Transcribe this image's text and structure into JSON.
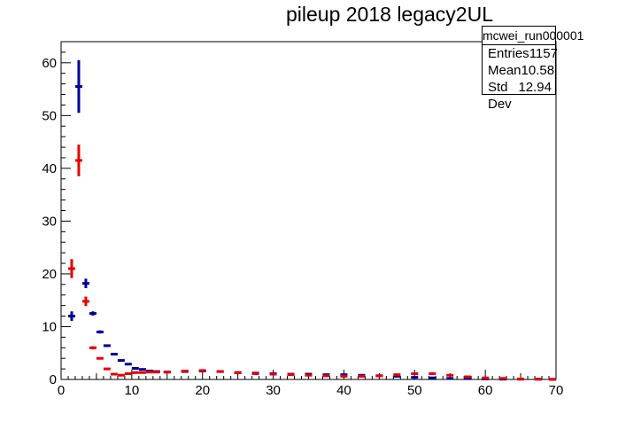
{
  "chart_data": {
    "type": "scatter",
    "title": "pileup 2018 legacy2UL",
    "xlabel": "",
    "ylabel": "",
    "xlim": [
      0,
      70
    ],
    "ylim": [
      0,
      64
    ],
    "x_ticks": [
      "0",
      "10",
      "20",
      "30",
      "40",
      "50",
      "60",
      "70"
    ],
    "y_ticks": [
      "0",
      "10",
      "20",
      "30",
      "40",
      "50",
      "60"
    ],
    "grid": false,
    "stats_box": {
      "name": "mcwei_run000001",
      "rows": [
        {
          "label": "Entries",
          "value": "1157"
        },
        {
          "label": "Mean",
          "value": "10.58"
        },
        {
          "label": "Std Dev",
          "value": "12.94"
        }
      ]
    },
    "series": [
      {
        "color": "#000099",
        "points": [
          {
            "x": 1.5,
            "y": 12.0,
            "err": 0.9
          },
          {
            "x": 2.5,
            "y": 55.5,
            "err": 5.0
          },
          {
            "x": 3.5,
            "y": 18.2,
            "err": 0.9
          },
          {
            "x": 4.5,
            "y": 12.5,
            "err": 0.4
          },
          {
            "x": 5.5,
            "y": 9.0,
            "err": 0.3
          },
          {
            "x": 6.5,
            "y": 6.4,
            "err": 0.2
          },
          {
            "x": 7.5,
            "y": 4.8,
            "err": 0.2
          },
          {
            "x": 8.5,
            "y": 3.6,
            "err": 0.15
          },
          {
            "x": 9.5,
            "y": 2.9,
            "err": 0.1
          },
          {
            "x": 10.5,
            "y": 2.1,
            "err": 0.1
          },
          {
            "x": 11.5,
            "y": 1.9,
            "err": 0.1
          },
          {
            "x": 12.5,
            "y": 1.6,
            "err": 0.1
          },
          {
            "x": 13.5,
            "y": 1.5,
            "err": 0.1
          },
          {
            "x": 15.0,
            "y": 1.4,
            "err": 0.1
          },
          {
            "x": 17.5,
            "y": 1.5,
            "err": 0.1
          },
          {
            "x": 20.0,
            "y": 1.6,
            "err": 0.1
          },
          {
            "x": 22.5,
            "y": 1.5,
            "err": 0.1
          },
          {
            "x": 25.0,
            "y": 1.3,
            "err": 0.1
          },
          {
            "x": 27.5,
            "y": 1.2,
            "err": 0.1
          },
          {
            "x": 30.0,
            "y": 1.1,
            "err": 0.1
          },
          {
            "x": 32.5,
            "y": 1.0,
            "err": 0.1
          },
          {
            "x": 35.0,
            "y": 1.0,
            "err": 0.1
          },
          {
            "x": 37.5,
            "y": 0.9,
            "err": 0.1
          },
          {
            "x": 40.0,
            "y": 0.9,
            "err": 0.1
          },
          {
            "x": 42.5,
            "y": 0.8,
            "err": 0.1
          },
          {
            "x": 45.0,
            "y": 0.7,
            "err": 0.1
          },
          {
            "x": 47.5,
            "y": 0.6,
            "err": 0.1
          },
          {
            "x": 50.0,
            "y": 0.4,
            "err": 0.1
          },
          {
            "x": 52.5,
            "y": 0.3,
            "err": 0.1
          },
          {
            "x": 55.0,
            "y": 0.2,
            "err": 0.1
          },
          {
            "x": 57.5,
            "y": 0.15,
            "err": 0.05
          },
          {
            "x": 60.0,
            "y": 0.1,
            "err": 0.05
          },
          {
            "x": 62.5,
            "y": 0.05,
            "err": 0.05
          },
          {
            "x": 65.0,
            "y": 0.05,
            "err": 0.05
          },
          {
            "x": 67.5,
            "y": 0.05,
            "err": 0.05
          },
          {
            "x": 69.5,
            "y": 0.02,
            "err": 0.02
          }
        ]
      },
      {
        "color": "#e60000",
        "points": [
          {
            "x": 1.5,
            "y": 21.0,
            "err": 1.8
          },
          {
            "x": 2.5,
            "y": 41.5,
            "err": 3.0
          },
          {
            "x": 3.5,
            "y": 14.8,
            "err": 0.9
          },
          {
            "x": 4.5,
            "y": 6.0,
            "err": 0.3
          },
          {
            "x": 5.5,
            "y": 4.0,
            "err": 0.2
          },
          {
            "x": 6.5,
            "y": 2.0,
            "err": 0.15
          },
          {
            "x": 7.5,
            "y": 1.0,
            "err": 0.1
          },
          {
            "x": 8.5,
            "y": 0.8,
            "err": 0.1
          },
          {
            "x": 9.5,
            "y": 1.1,
            "err": 0.1
          },
          {
            "x": 10.5,
            "y": 1.3,
            "err": 0.1
          },
          {
            "x": 11.5,
            "y": 1.3,
            "err": 0.1
          },
          {
            "x": 12.5,
            "y": 1.4,
            "err": 0.1
          },
          {
            "x": 13.5,
            "y": 1.4,
            "err": 0.1
          },
          {
            "x": 15.0,
            "y": 1.4,
            "err": 0.1
          },
          {
            "x": 17.5,
            "y": 1.6,
            "err": 0.1
          },
          {
            "x": 20.0,
            "y": 1.7,
            "err": 0.1
          },
          {
            "x": 22.5,
            "y": 1.5,
            "err": 0.1
          },
          {
            "x": 25.0,
            "y": 1.3,
            "err": 0.1
          },
          {
            "x": 27.5,
            "y": 1.1,
            "err": 0.1
          },
          {
            "x": 30.0,
            "y": 1.0,
            "err": 0.1
          },
          {
            "x": 32.5,
            "y": 0.9,
            "err": 0.1
          },
          {
            "x": 35.0,
            "y": 0.8,
            "err": 0.1
          },
          {
            "x": 37.5,
            "y": 0.7,
            "err": 0.1
          },
          {
            "x": 40.0,
            "y": 0.6,
            "err": 0.1
          },
          {
            "x": 42.5,
            "y": 0.6,
            "err": 0.1
          },
          {
            "x": 45.0,
            "y": 0.7,
            "err": 0.1
          },
          {
            "x": 47.5,
            "y": 0.9,
            "err": 0.1
          },
          {
            "x": 50.0,
            "y": 1.1,
            "err": 0.1
          },
          {
            "x": 52.5,
            "y": 1.1,
            "err": 0.1
          },
          {
            "x": 55.0,
            "y": 0.8,
            "err": 0.1
          },
          {
            "x": 57.5,
            "y": 0.5,
            "err": 0.1
          },
          {
            "x": 60.0,
            "y": 0.3,
            "err": 0.05
          },
          {
            "x": 62.5,
            "y": 0.2,
            "err": 0.05
          },
          {
            "x": 65.0,
            "y": 0.1,
            "err": 0.05
          },
          {
            "x": 67.5,
            "y": 0.05,
            "err": 0.05
          },
          {
            "x": 69.5,
            "y": 0.02,
            "err": 0.02
          }
        ]
      }
    ]
  }
}
